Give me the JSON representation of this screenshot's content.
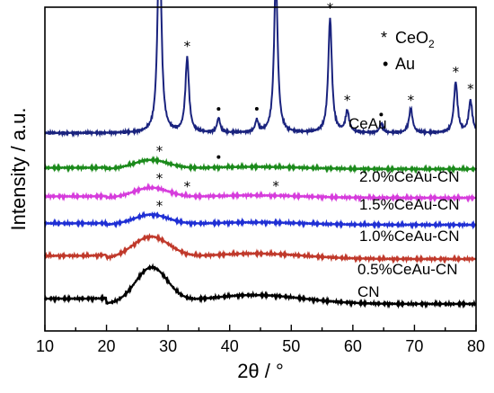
{
  "chart_data": {
    "type": "line",
    "xlabel": "2θ / °",
    "ylabel": "Intensity / a.u.",
    "xlim": [
      10,
      80
    ],
    "xticks": [
      "10",
      "20",
      "30",
      "40",
      "50",
      "60",
      "70",
      "80"
    ],
    "legend": [
      {
        "symbol": "*",
        "text": "CeO",
        "sub": "2"
      },
      {
        "symbol": "•",
        "text": "Au"
      }
    ],
    "series": [
      {
        "name": "CeAu",
        "color": "#1a237e",
        "baseline": 0.85,
        "peaks": [
          {
            "x": 28.6,
            "h": 8.0,
            "w": 0.35
          },
          {
            "x": 33.1,
            "h": 2.8,
            "w": 0.35
          },
          {
            "x": 38.2,
            "h": 0.55,
            "w": 0.3
          },
          {
            "x": 44.4,
            "h": 0.45,
            "w": 0.3
          },
          {
            "x": 47.5,
            "h": 5.9,
            "w": 0.35
          },
          {
            "x": 56.3,
            "h": 4.3,
            "w": 0.35
          },
          {
            "x": 59.1,
            "h": 0.8,
            "w": 0.35
          },
          {
            "x": 64.6,
            "h": 0.35,
            "w": 0.3
          },
          {
            "x": 69.4,
            "h": 0.9,
            "w": 0.35
          },
          {
            "x": 76.7,
            "h": 1.9,
            "w": 0.35
          },
          {
            "x": 79.1,
            "h": 1.2,
            "w": 0.35
          }
        ],
        "markers": [
          {
            "x": 28.6,
            "type": "star"
          },
          {
            "x": 33.1,
            "type": "star"
          },
          {
            "x": 38.2,
            "type": "dot"
          },
          {
            "x": 44.4,
            "type": "dot"
          },
          {
            "x": 47.5,
            "type": "star"
          },
          {
            "x": 56.3,
            "type": "star"
          },
          {
            "x": 59.1,
            "type": "star"
          },
          {
            "x": 64.6,
            "type": "dot"
          },
          {
            "x": 69.4,
            "type": "star"
          },
          {
            "x": 76.7,
            "type": "star"
          },
          {
            "x": 79.1,
            "type": "star"
          }
        ]
      },
      {
        "name": "2.0%CeAu-CN",
        "color": "#1b8a1b",
        "baseline": 0.68,
        "broad": {
          "x": 27.2,
          "h": 0.45,
          "w": 2.8
        },
        "markers": [
          {
            "x": 28.6,
            "type": "star"
          },
          {
            "x": 38.2,
            "type": "dot"
          }
        ]
      },
      {
        "name": "1.5%CeAu-CN",
        "color": "#d63cdc",
        "baseline": 0.52,
        "broad": {
          "x": 27.2,
          "h": 0.5,
          "w": 2.8
        },
        "markers": [
          {
            "x": 28.6,
            "type": "star"
          },
          {
            "x": 33.1,
            "type": "star"
          },
          {
            "x": 47.5,
            "type": "star"
          }
        ]
      },
      {
        "name": "1.0%CeAu-CN",
        "color": "#1f2fd4",
        "baseline": 0.38,
        "broad": {
          "x": 27.2,
          "h": 0.5,
          "w": 2.8
        },
        "markers": [
          {
            "x": 28.6,
            "type": "star"
          }
        ]
      },
      {
        "name": "0.5%CeAu-CN",
        "color": "#c0392b",
        "baseline": 0.2,
        "broad": {
          "x": 27.2,
          "h": 1.1,
          "w": 3.0
        }
      },
      {
        "name": "CN",
        "color": "#000000",
        "baseline": 0.0,
        "broad": {
          "x": 27.3,
          "h": 1.8,
          "w": 2.6
        }
      }
    ]
  }
}
